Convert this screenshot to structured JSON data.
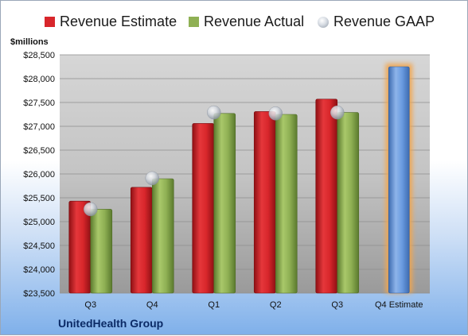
{
  "legend": {
    "estimate": "Revenue Estimate",
    "actual": "Revenue Actual",
    "gaap": "Revenue GAAP"
  },
  "units_label": "$millions",
  "company": "UnitedHealth Group",
  "colors": {
    "estimate": "#d8262b",
    "actual": "#8fb054",
    "gaap": "#c8ccd2",
    "forecast": "#5d8fd6",
    "forecast_glow": "#f3a64d"
  },
  "chart_data": {
    "type": "bar",
    "categories": [
      "Q3",
      "Q4",
      "Q1",
      "Q2",
      "Q3",
      "Q4 Estimate"
    ],
    "ylabel": "$millions",
    "ylim": [
      23500,
      28500
    ],
    "yticks": [
      23500,
      24000,
      24500,
      25000,
      25500,
      26000,
      26500,
      27000,
      27500,
      28000,
      28500
    ],
    "ytick_labels": [
      "$23,500",
      "$24,000",
      "$24,500",
      "$25,000",
      "$25,500",
      "$26,000",
      "$26,500",
      "$27,000",
      "$27,500",
      "$28,000",
      "$28,500"
    ],
    "grid": true,
    "legend_position": "top",
    "series": [
      {
        "name": "Revenue Estimate",
        "values": [
          25430,
          25720,
          27060,
          27310,
          27570,
          null
        ]
      },
      {
        "name": "Revenue Actual",
        "values": [
          25260,
          25900,
          27270,
          27250,
          27290,
          null
        ]
      },
      {
        "name": "Revenue GAAP",
        "values": [
          25260,
          25910,
          27290,
          27270,
          27290,
          null
        ]
      }
    ],
    "forecast": {
      "category": "Q4 Estimate",
      "value": 28250
    }
  }
}
